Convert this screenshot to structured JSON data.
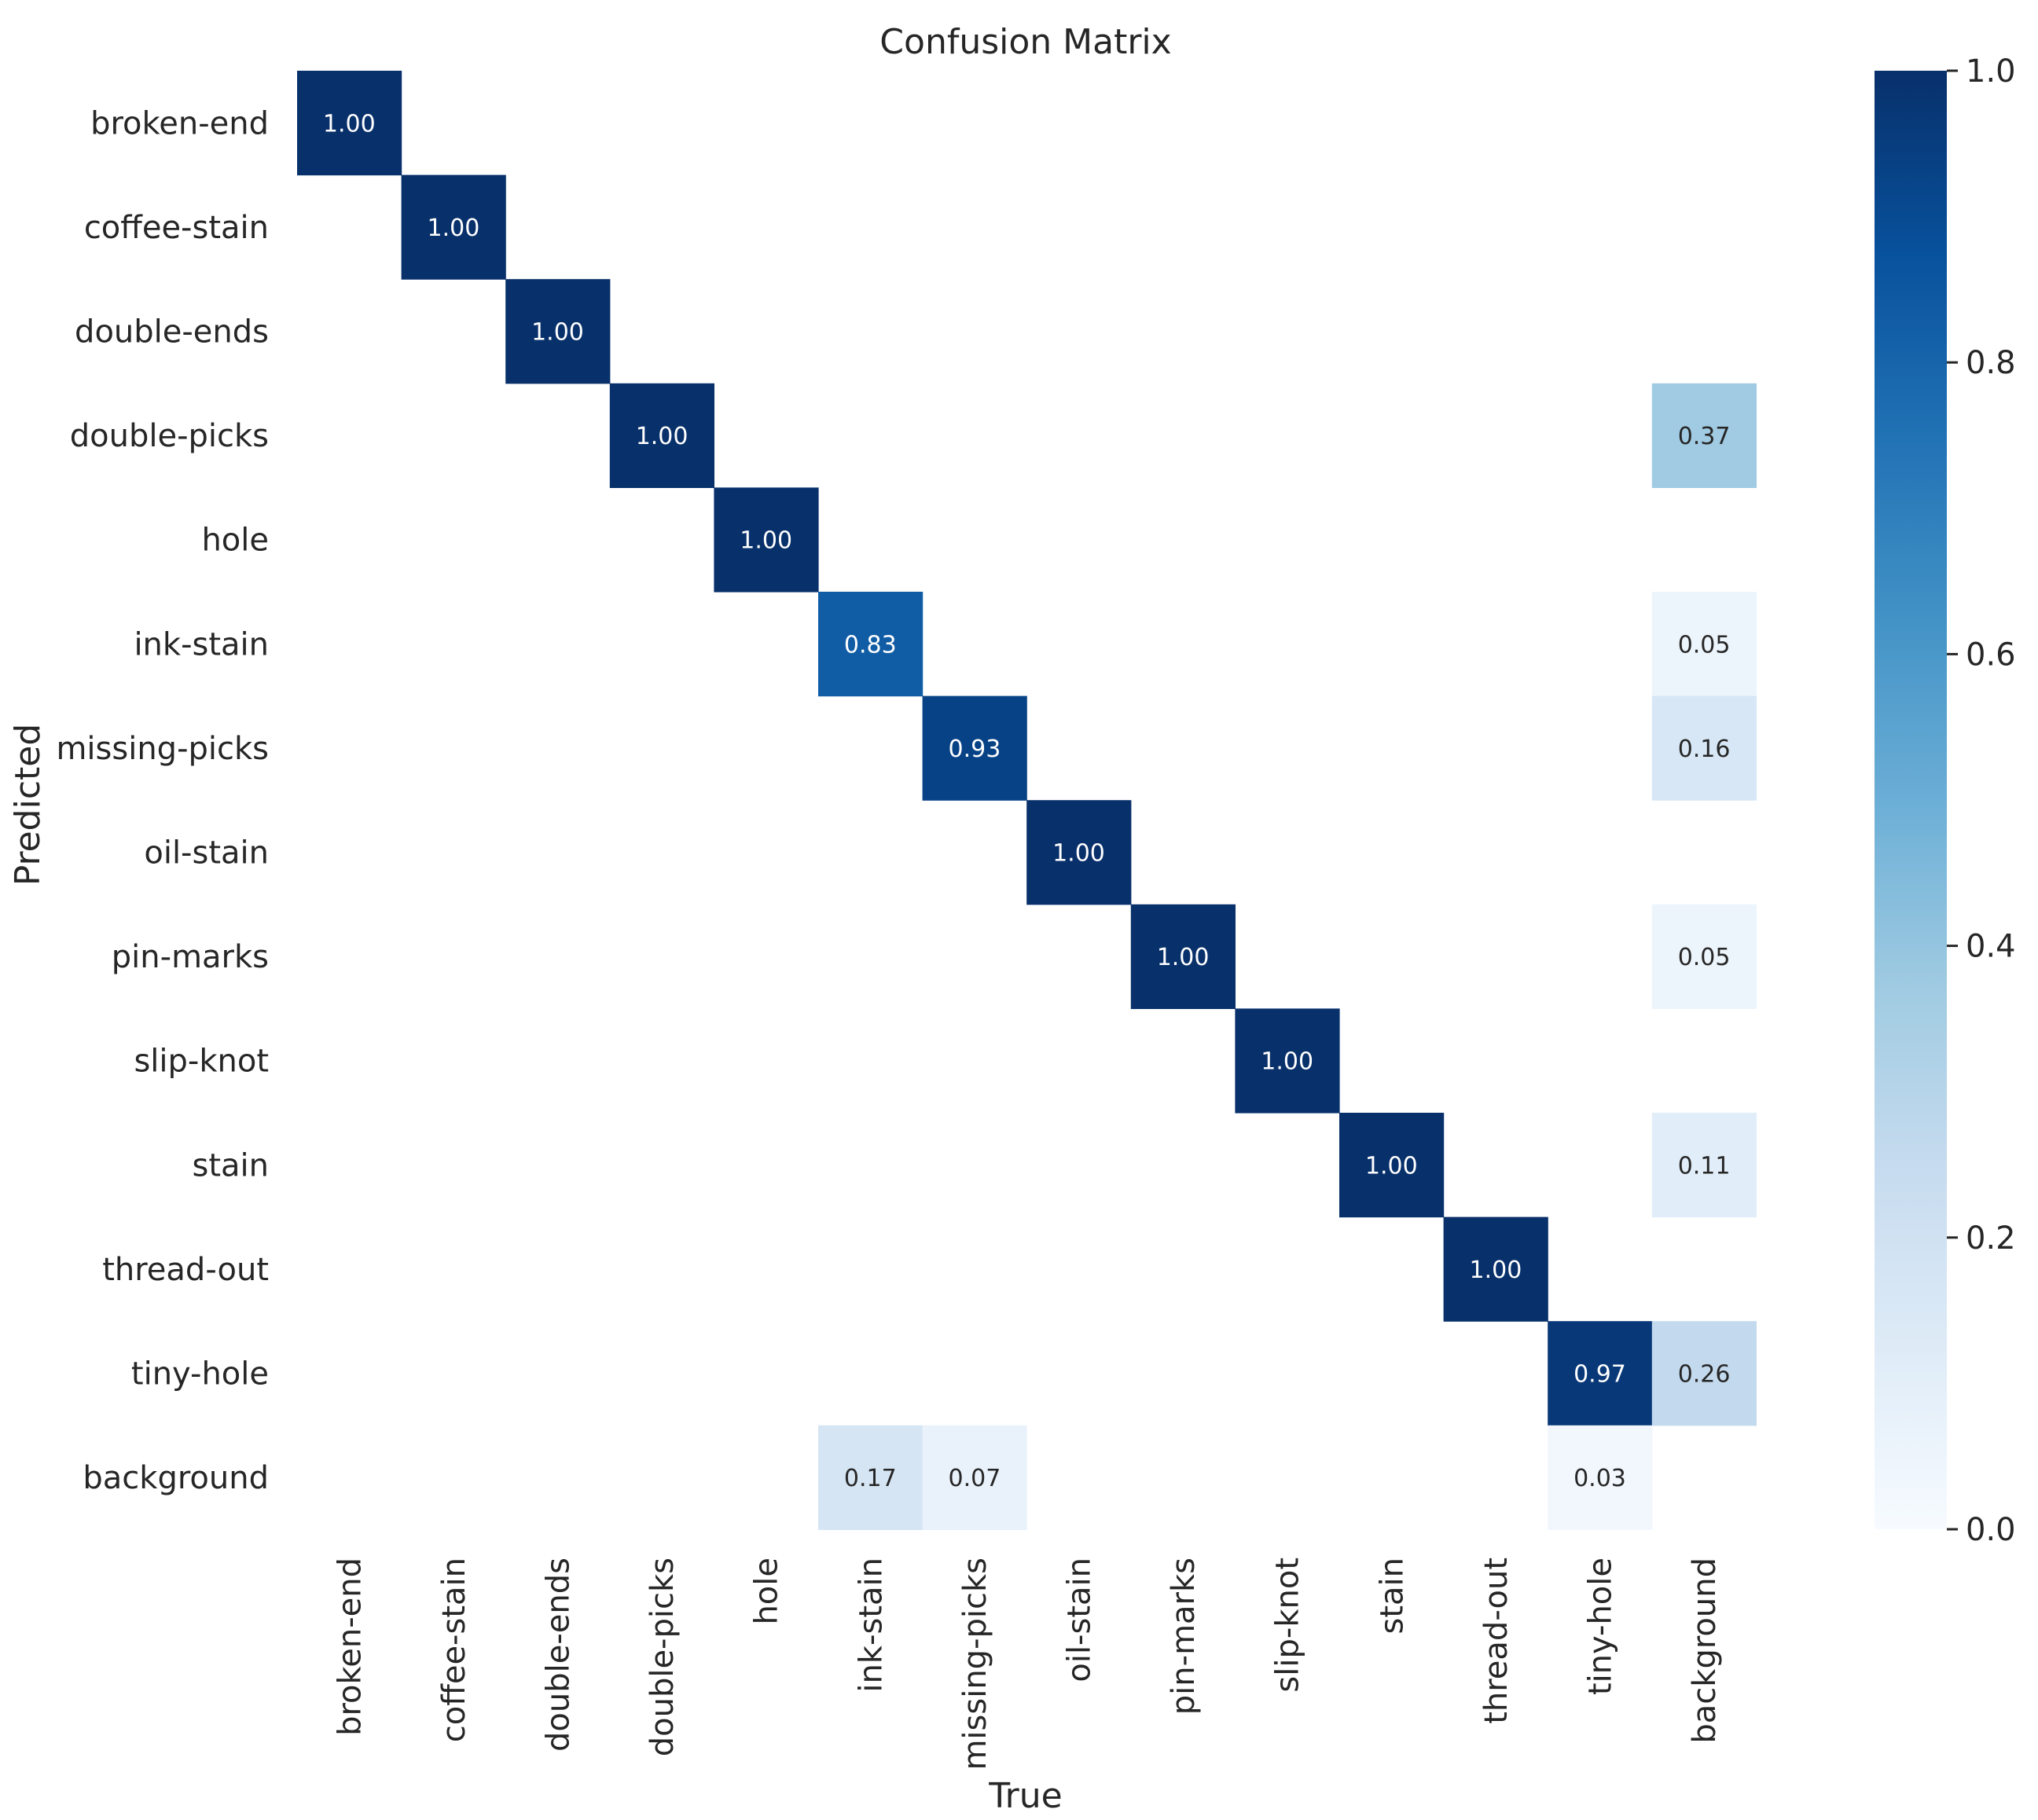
{
  "chart_data": {
    "type": "heatmap",
    "title": "Confusion Matrix",
    "xlabel": "True",
    "ylabel": "Predicted",
    "x_categories": [
      "broken-end",
      "coffee-stain",
      "double-ends",
      "double-picks",
      "hole",
      "ink-stain",
      "missing-picks",
      "oil-stain",
      "pin-marks",
      "slip-knot",
      "stain",
      "thread-out",
      "tiny-hole",
      "background"
    ],
    "y_categories": [
      "broken-end",
      "coffee-stain",
      "double-ends",
      "double-picks",
      "hole",
      "ink-stain",
      "missing-picks",
      "oil-stain",
      "pin-marks",
      "slip-knot",
      "stain",
      "thread-out",
      "tiny-hole",
      "background"
    ],
    "cells": [
      {
        "row": 0,
        "col": 0,
        "value": 1.0
      },
      {
        "row": 1,
        "col": 1,
        "value": 1.0
      },
      {
        "row": 2,
        "col": 2,
        "value": 1.0
      },
      {
        "row": 3,
        "col": 3,
        "value": 1.0
      },
      {
        "row": 3,
        "col": 13,
        "value": 0.37
      },
      {
        "row": 4,
        "col": 4,
        "value": 1.0
      },
      {
        "row": 5,
        "col": 5,
        "value": 0.83
      },
      {
        "row": 5,
        "col": 13,
        "value": 0.05
      },
      {
        "row": 6,
        "col": 6,
        "value": 0.93
      },
      {
        "row": 6,
        "col": 13,
        "value": 0.16
      },
      {
        "row": 7,
        "col": 7,
        "value": 1.0
      },
      {
        "row": 8,
        "col": 8,
        "value": 1.0
      },
      {
        "row": 8,
        "col": 13,
        "value": 0.05
      },
      {
        "row": 9,
        "col": 9,
        "value": 1.0
      },
      {
        "row": 10,
        "col": 10,
        "value": 1.0
      },
      {
        "row": 10,
        "col": 13,
        "value": 0.11
      },
      {
        "row": 11,
        "col": 11,
        "value": 1.0
      },
      {
        "row": 12,
        "col": 12,
        "value": 0.97
      },
      {
        "row": 12,
        "col": 13,
        "value": 0.26
      },
      {
        "row": 13,
        "col": 5,
        "value": 0.17
      },
      {
        "row": 13,
        "col": 6,
        "value": 0.07
      },
      {
        "row": 13,
        "col": 12,
        "value": 0.03
      }
    ],
    "colorbar": {
      "range": [
        0.0,
        1.0
      ],
      "ticks": [
        "0.0",
        "0.2",
        "0.4",
        "0.6",
        "0.8",
        "1.0"
      ],
      "colormap": "Blues",
      "colors": [
        "#f7fbff",
        "#deebf7",
        "#c6dbef",
        "#9ecae1",
        "#6baed6",
        "#4292c6",
        "#2171b5",
        "#08519c",
        "#08306b"
      ]
    },
    "text_color_light": "#ffffff",
    "text_color_dark": "#262626"
  }
}
